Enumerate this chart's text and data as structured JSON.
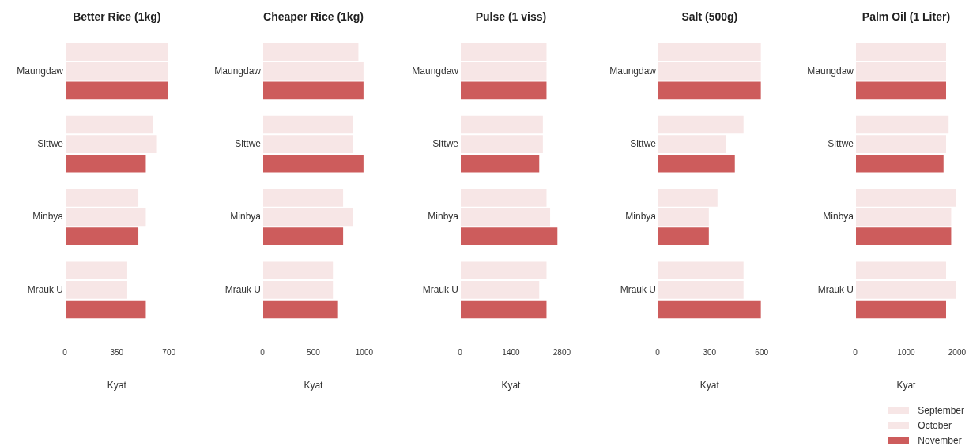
{
  "chart_data": [
    {
      "type": "bar",
      "orientation": "horizontal",
      "title": "Better Rice (1kg)",
      "xlabel": "Kyat",
      "categories": [
        "Maungdaw",
        "Sittwe",
        "Minbya",
        "Mrauk U"
      ],
      "xlim": [
        0,
        700
      ],
      "xticks": [
        0,
        350,
        700
      ],
      "grid": false,
      "series": [
        {
          "color": "#f7e6e6",
          "values": [
            700,
            600,
            500,
            425
          ]
        },
        {
          "color": "#f7e6e6",
          "values": [
            700,
            625,
            550,
            425
          ]
        },
        {
          "color": "#cd5c5c",
          "values": [
            700,
            550,
            500,
            550
          ]
        }
      ]
    },
    {
      "type": "bar",
      "orientation": "horizontal",
      "title": "Cheaper Rice (1kg)",
      "xlabel": "Kyat",
      "categories": [
        "Maungdaw",
        "Sittwe",
        "Minbya",
        "Mrauk U"
      ],
      "xlim": [
        0,
        1000
      ],
      "xticks": [
        0,
        500,
        1000
      ],
      "grid": false,
      "series": [
        {
          "color": "#f7e6e6",
          "values": [
            950,
            900,
            800,
            700
          ]
        },
        {
          "color": "#f7e6e6",
          "values": [
            1000,
            900,
            900,
            700
          ]
        },
        {
          "color": "#cd5c5c",
          "values": [
            1000,
            1000,
            800,
            750
          ]
        }
      ]
    },
    {
      "type": "bar",
      "orientation": "horizontal",
      "title": "Pulse (1 viss)",
      "xlabel": "Kyat",
      "categories": [
        "Maungdaw",
        "Sittwe",
        "Minbya",
        "Mrauk U"
      ],
      "xlim": [
        0,
        2800
      ],
      "xticks": [
        0,
        1400,
        2800
      ],
      "grid": false,
      "series": [
        {
          "color": "#f7e6e6",
          "values": [
            2400,
            2300,
            2400,
            2400
          ]
        },
        {
          "color": "#f7e6e6",
          "values": [
            2400,
            2300,
            2500,
            2200
          ]
        },
        {
          "color": "#cd5c5c",
          "values": [
            2400,
            2200,
            2700,
            2400
          ]
        }
      ]
    },
    {
      "type": "bar",
      "orientation": "horizontal",
      "title": "Salt (500g)",
      "xlabel": "Kyat",
      "categories": [
        "Maungdaw",
        "Sittwe",
        "Minbya",
        "Mrauk U"
      ],
      "xlim": [
        0,
        600
      ],
      "xticks": [
        0,
        300,
        600
      ],
      "grid": false,
      "series": [
        {
          "color": "#f7e6e6",
          "values": [
            600,
            500,
            350,
            500
          ]
        },
        {
          "color": "#f7e6e6",
          "values": [
            600,
            400,
            300,
            500
          ]
        },
        {
          "color": "#cd5c5c",
          "values": [
            600,
            450,
            300,
            600
          ]
        }
      ]
    },
    {
      "type": "bar",
      "orientation": "horizontal",
      "title": "Palm Oil (1 Liter)",
      "xlabel": "Kyat",
      "categories": [
        "Maungdaw",
        "Sittwe",
        "Minbya",
        "Mrauk U"
      ],
      "xlim": [
        0,
        2000
      ],
      "xticks": [
        0,
        1000,
        2000
      ],
      "grid": false,
      "legend": "bottom right",
      "series": [
        {
          "name": "September",
          "color": "#f7e6e6",
          "values": [
            1800,
            1850,
            2000,
            1800
          ]
        },
        {
          "name": "October",
          "color": "#f7e6e6",
          "values": [
            1800,
            1800,
            1900,
            2000
          ]
        },
        {
          "name": "November",
          "color": "#cd5c5c",
          "values": [
            1800,
            1750,
            1900,
            1800
          ]
        }
      ]
    }
  ]
}
